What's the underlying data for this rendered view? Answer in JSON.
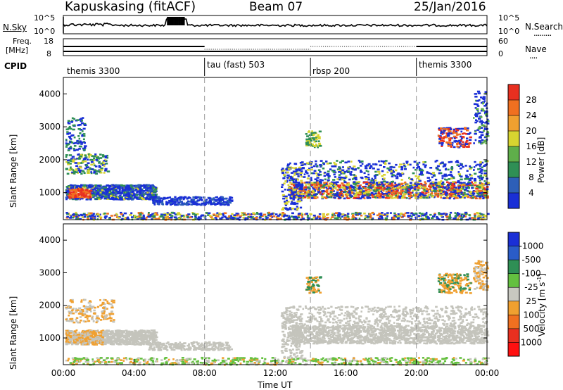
{
  "header": {
    "station": "Kapuskasing (fitACF)",
    "beam": "Beam 07",
    "date": "25/Jan/2016"
  },
  "noise_panel": {
    "left_label": "N.Sky",
    "right_label": "N.Search",
    "right_line": ".........",
    "yticks": [
      "10^5",
      "10^0"
    ]
  },
  "freq_panel": {
    "left_label_1": "Freq.",
    "left_label_2": "[MHz]",
    "left_ticks": [
      "18",
      "8"
    ],
    "right_label": "Nave",
    "right_line": "....",
    "right_ticks": [
      "60",
      "0"
    ]
  },
  "cpid": {
    "label": "CPID",
    "segments": [
      {
        "name": "themis 3300",
        "start_hour": 0
      },
      {
        "name": "tau (fast) 503",
        "start_hour": 8
      },
      {
        "name": "rbsp 200",
        "start_hour": 14
      },
      {
        "name": "themis 3300",
        "start_hour": 20
      }
    ]
  },
  "chart_data": [
    {
      "type": "heatmap",
      "name": "power",
      "ylabel": "Slant Range [km]",
      "yticks": [
        "1000",
        "2000",
        "3000",
        "4000"
      ],
      "ylim": [
        180,
        4500
      ],
      "colorbar_label": "Power [dB]",
      "colorbar_ticks": [
        "4",
        "8",
        "12",
        "16",
        "20",
        "24",
        "28"
      ],
      "colorbar_colors": [
        "#1a2fd6",
        "#2d5fb8",
        "#2f8f55",
        "#5fae4a",
        "#d7d430",
        "#f0a030",
        "#f07020",
        "#e83020"
      ],
      "features": [
        {
          "hours": [
            0.1,
            8.5
          ],
          "range_km": [
            800,
            1350
          ],
          "level": "high near 01:00"
        },
        {
          "hours": [
            12.8,
            24.0
          ],
          "range_km": [
            850,
            1400
          ],
          "level": "high"
        },
        {
          "hours": [
            21.5,
            22.8
          ],
          "range_km": [
            2500,
            3000
          ],
          "level": "high"
        }
      ]
    },
    {
      "type": "heatmap",
      "name": "velocity",
      "ylabel": "Slant Range [km]",
      "yticks": [
        "1000",
        "2000",
        "3000",
        "4000"
      ],
      "ylim": [
        180,
        4500
      ],
      "colorbar_label": "Velocity [m s^-1]",
      "colorbar_ticks": [
        "1000",
        "500",
        "100",
        "25",
        "-25",
        "-100",
        "-500",
        "-1000"
      ],
      "colorbar_colors": [
        "#1a2fd6",
        "#2a5cc8",
        "#2f8f55",
        "#64c040",
        "#c8c8c0",
        "#f0a030",
        "#f07020",
        "#e83020",
        "#ff1010"
      ],
      "features": [
        {
          "hours": [
            0.1,
            8.0
          ],
          "range_km": [
            800,
            1400
          ],
          "level": "ground scatter (grey), orange near 01:00"
        },
        {
          "hours": [
            12.8,
            24.0
          ],
          "range_km": [
            850,
            1400
          ],
          "level": "ground scatter (grey)"
        },
        {
          "hours": [
            21.5,
            22.8
          ],
          "range_km": [
            2500,
            3000
          ],
          "level": "orange/green"
        }
      ]
    }
  ],
  "xaxis": {
    "label": "Time UT",
    "ticks": [
      "00:00",
      "04:00",
      "08:00",
      "12:00",
      "16:00",
      "20:00",
      "00:00"
    ]
  },
  "colors": {
    "ground_scatter": "#c4c4bc"
  }
}
